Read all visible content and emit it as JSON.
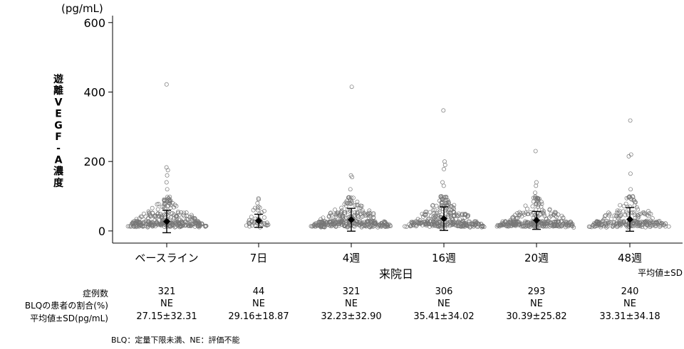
{
  "chart_data": {
    "type": "scatter",
    "title": "",
    "unit_label": "(pg/mL)",
    "ylabel": "遊離VEGF-A濃度",
    "xlabel": "来院日",
    "legend_note": "平均値±SD",
    "ylim": [
      -35,
      620
    ],
    "yticks": [
      0,
      200,
      400,
      600
    ],
    "grid": false,
    "categories": [
      "ベースライン",
      "7日",
      "4週",
      "16週",
      "20週",
      "48週"
    ],
    "series": [
      {
        "values": [
          27.15,
          29.16,
          32.23,
          35.41,
          30.39,
          33.31
        ],
        "sd": [
          32.31,
          18.87,
          32.9,
          34.02,
          25.82,
          34.18
        ]
      }
    ],
    "high_points": [
      [
        422,
        183,
        175,
        160,
        140,
        120
      ],
      [
        80,
        70,
        60
      ],
      [
        415,
        160,
        155,
        120
      ],
      [
        347,
        200,
        190,
        178,
        140,
        130
      ],
      [
        230,
        140,
        130,
        110
      ],
      [
        318,
        220,
        215,
        165,
        120
      ]
    ]
  },
  "table": {
    "rows": [
      {
        "label": "症例数",
        "values": [
          "321",
          "44",
          "321",
          "306",
          "293",
          "240"
        ]
      },
      {
        "label": "BLQの患者の割合(%)",
        "values": [
          "NE",
          "NE",
          "NE",
          "NE",
          "NE",
          "NE"
        ]
      },
      {
        "label": "平均値±SD(pg/mL)",
        "values": [
          "27.15±32.31",
          "29.16±18.87",
          "32.23±32.90",
          "35.41±34.02",
          "30.39±25.82",
          "33.31±34.18"
        ]
      }
    ]
  },
  "footnote": "BLQ：定量下限未満、NE：評価不能"
}
